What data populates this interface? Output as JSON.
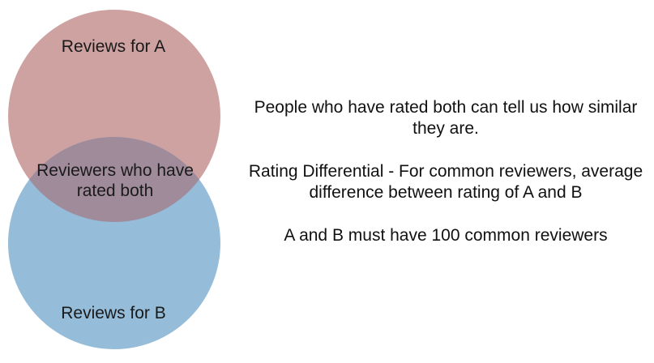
{
  "venn": {
    "set_a_label": "Reviews for A",
    "intersection_label": "Reviewers who have rated both",
    "set_b_label": "Reviews for B",
    "colors": {
      "set_a": "#c99a9a",
      "set_b": "#8fb8d6",
      "intersection": "#9a8a9a"
    }
  },
  "notes": {
    "line_1": "People who have rated both can tell us how similar they are.",
    "line_2": "Rating Differential - For common reviewers, average difference between rating of A and B",
    "line_3": "A and B must have 100 common reviewers"
  }
}
